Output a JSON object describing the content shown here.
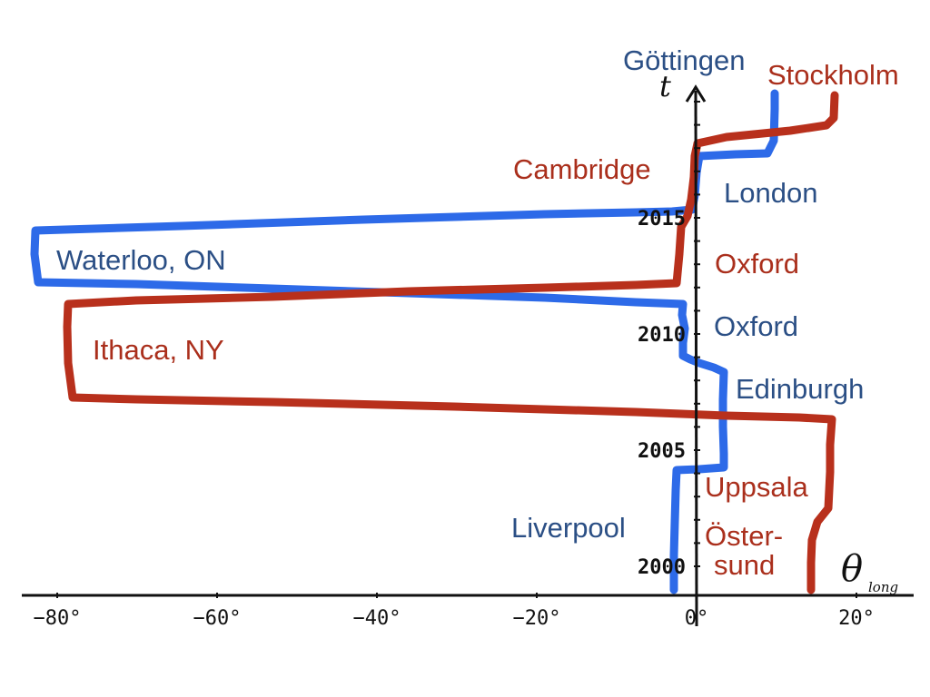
{
  "colors": {
    "blue_path": "#2d6ae8",
    "red_path": "#b8301c",
    "blue_label": "#2b4f85",
    "red_label": "#aa2f1c",
    "axis": "#111111"
  },
  "axes": {
    "x_label_main": "θ",
    "x_label_sub": "long",
    "y_label": "t",
    "x_ticks": [
      {
        "value": -80,
        "label": "−80°"
      },
      {
        "value": -60,
        "label": "−60°"
      },
      {
        "value": -40,
        "label": "−40°"
      },
      {
        "value": -20,
        "label": "−20°"
      },
      {
        "value": 0,
        "label": "0°"
      },
      {
        "value": 20,
        "label": "20°"
      }
    ],
    "y_ticks": [
      {
        "value": 2000,
        "label": "2000"
      },
      {
        "value": 2005,
        "label": "2005"
      },
      {
        "value": 2010,
        "label": "2010"
      },
      {
        "value": 2015,
        "label": "2015"
      }
    ]
  },
  "labels": {
    "gottingen": "Göttingen",
    "stockholm": "Stockholm",
    "cambridge": "Cambridge",
    "london": "London",
    "waterloo": "Waterloo, ON",
    "oxford_red": "Oxford",
    "oxford_blue": "Oxford",
    "ithaca": "Ithaca, NY",
    "edinburgh": "Edinburgh",
    "uppsala": "Uppsala",
    "liverpool": "Liverpool",
    "ostersund_1": "Öster-",
    "ostersund_2": "sund"
  }
}
